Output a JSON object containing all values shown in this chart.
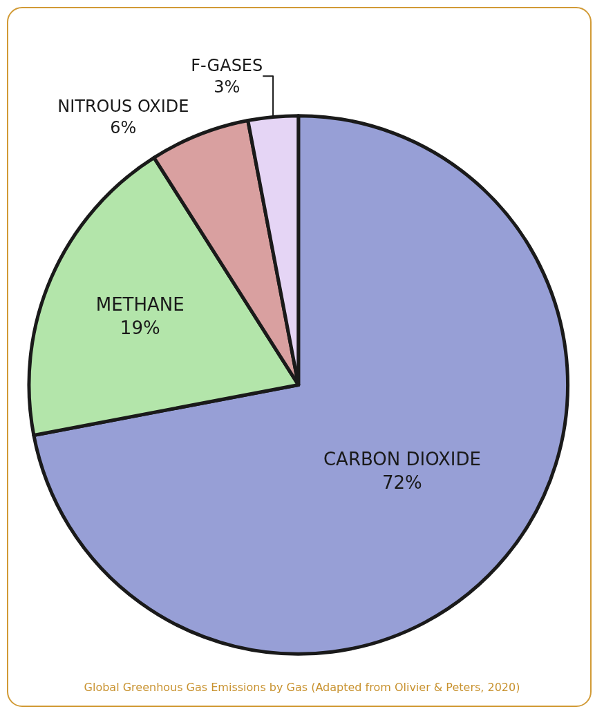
{
  "chart_data": {
    "type": "pie",
    "title": "Global Greenhous Gas Emissions by Gas (Adapted from Olivier & Peters, 2020)",
    "categories": [
      "CARBON DIOXIDE",
      "METHANE",
      "NITROUS OXIDE",
      "F-GASES"
    ],
    "values": [
      72,
      19,
      6,
      3
    ],
    "value_labels": [
      "72%",
      "19%",
      "6%",
      "3%"
    ],
    "colors": [
      "#979fd6",
      "#b3e5aa",
      "#d9a0a0",
      "#e5d5f5"
    ],
    "legend": false
  }
}
